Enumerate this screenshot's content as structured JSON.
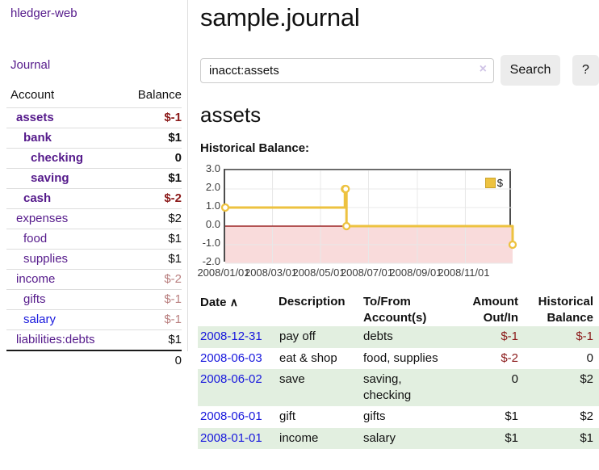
{
  "app": {
    "brand": "hledger-web",
    "nav_journal": "Journal"
  },
  "sidebar": {
    "headers": {
      "account": "Account",
      "balance": "Balance"
    },
    "accounts": [
      {
        "name": "assets",
        "balance": "$-1",
        "indent": 1,
        "bold": true,
        "balance_class": "neg-strong",
        "link": "purple"
      },
      {
        "name": "bank",
        "balance": "$1",
        "indent": 2,
        "bold": true,
        "balance_class": "pos",
        "link": "purple"
      },
      {
        "name": "checking",
        "balance": "0",
        "indent": 3,
        "bold": true,
        "balance_class": "pos",
        "link": "purple"
      },
      {
        "name": "saving",
        "balance": "$1",
        "indent": 3,
        "bold": true,
        "balance_class": "pos",
        "link": "purple"
      },
      {
        "name": "cash",
        "balance": "$-2",
        "indent": 2,
        "bold": true,
        "balance_class": "neg-strong",
        "link": "purple"
      },
      {
        "name": "expenses",
        "balance": "$2",
        "indent": 1,
        "bold": false,
        "balance_class": "pos",
        "link": "purple"
      },
      {
        "name": "food",
        "balance": "$1",
        "indent": 2,
        "bold": false,
        "balance_class": "pos",
        "link": "purple"
      },
      {
        "name": "supplies",
        "balance": "$1",
        "indent": 2,
        "bold": false,
        "balance_class": "pos",
        "link": "purple"
      },
      {
        "name": "income",
        "balance": "$-2",
        "indent": 1,
        "bold": false,
        "balance_class": "neg-muted",
        "link": "purple"
      },
      {
        "name": "gifts",
        "balance": "$-1",
        "indent": 2,
        "bold": false,
        "balance_class": "neg-muted",
        "link": "purple"
      },
      {
        "name": "salary",
        "balance": "$-1",
        "indent": 2,
        "bold": false,
        "balance_class": "neg-muted",
        "link": "blue"
      },
      {
        "name": "liabilities:debts",
        "balance": "$1",
        "indent": 1,
        "bold": false,
        "balance_class": "pos",
        "link": "purple"
      }
    ],
    "total": "0"
  },
  "header": {
    "title": "sample.journal"
  },
  "search": {
    "value": "inacct:assets",
    "clear_icon": "×",
    "button_label": "Search",
    "help_label": "?"
  },
  "account_page": {
    "heading": "assets",
    "chart_title": "Historical Balance:"
  },
  "chart_data": {
    "type": "line",
    "title": "Historical Balance:",
    "step": true,
    "x_start": "2008-01-01",
    "x_end": "2008-12-31",
    "x_range_days": 365,
    "ylim": [
      -2,
      3
    ],
    "y_ticks": [
      "3.0",
      "2.0",
      "1.0",
      "0.0",
      "-1.0",
      "-2.0"
    ],
    "x_ticks": [
      "2008/01/01",
      "2008/03/01",
      "2008/05/01",
      "2008/07/01",
      "2008/09/01",
      "2008/11/01"
    ],
    "series": [
      {
        "name": "$",
        "color": "#edc240",
        "points": [
          [
            "2008-01-01",
            1
          ],
          [
            "2008-06-01",
            2
          ],
          [
            "2008-06-02",
            2
          ],
          [
            "2008-06-03",
            0
          ],
          [
            "2008-12-31",
            -1
          ]
        ]
      }
    ],
    "negative_region": {
      "from": -2,
      "to": 0,
      "fill": "#f9dbdb",
      "line_color": "#8b0000"
    },
    "grid_color": "#e8e8e8",
    "border_color": "#4d4d4d",
    "legend": {
      "label": "$",
      "position": "top-right"
    }
  },
  "transactions": {
    "headers": {
      "date": "Date",
      "sort_icon": "∧",
      "description": "Description",
      "tofrom_line1": "To/From",
      "tofrom_line2": "Account(s)",
      "amount_line1": "Amount",
      "amount_line2": "Out/In",
      "balance_line1": "Historical",
      "balance_line2": "Balance"
    },
    "rows": [
      {
        "date": "2008-12-31",
        "description": "pay off",
        "accounts": "debts",
        "amount": "$-1",
        "amount_neg": true,
        "balance": "$-1",
        "balance_neg": true
      },
      {
        "date": "2008-06-03",
        "description": "eat & shop",
        "accounts": "food, supplies",
        "amount": "$-2",
        "amount_neg": true,
        "balance": "0",
        "balance_neg": false
      },
      {
        "date": "2008-06-02",
        "description": "save",
        "accounts": "saving, checking",
        "amount": "0",
        "amount_neg": false,
        "balance": "$2",
        "balance_neg": false
      },
      {
        "date": "2008-06-01",
        "description": "gift",
        "accounts": "gifts",
        "amount": "$1",
        "amount_neg": false,
        "balance": "$2",
        "balance_neg": false
      },
      {
        "date": "2008-01-01",
        "description": "income",
        "accounts": "salary",
        "amount": "$1",
        "amount_neg": false,
        "balance": "$1",
        "balance_neg": false
      }
    ]
  },
  "colors": {
    "link_purple": "#551a8b",
    "link_blue": "#1818dd",
    "negative_strong": "#8b1a1a",
    "negative_muted": "#b97f7f",
    "row_green": "#e2efe0",
    "series_yellow": "#edc240",
    "zero_line_red": "#8b0000",
    "negative_band_pink": "#f9dbdb"
  }
}
